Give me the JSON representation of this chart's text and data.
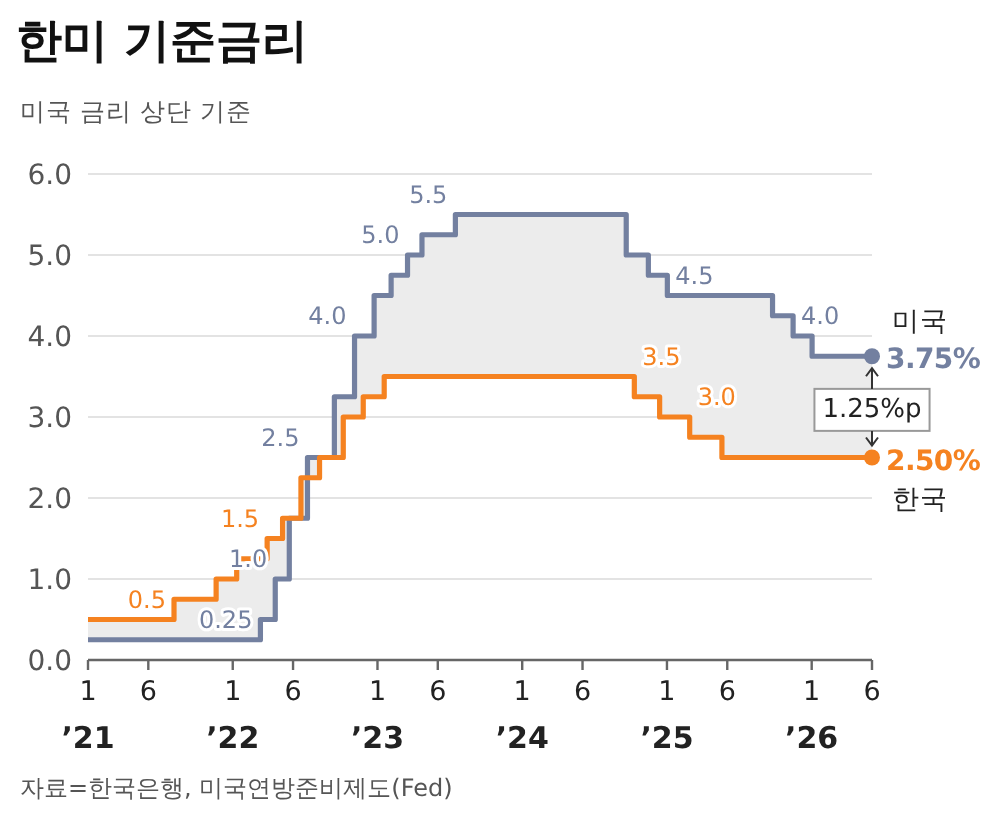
{
  "chart_data": {
    "type": "step",
    "title": "한미 기준금리",
    "subtitle": "미국 금리 상단 기준",
    "xlim": [
      "2021-01",
      "2026-06"
    ],
    "ylim": [
      0,
      6
    ],
    "xticks": [
      {
        "value": "2021-01",
        "label": "1\n’21"
      },
      {
        "value": "2021-06",
        "label": "6"
      },
      {
        "value": "2022-01",
        "label": "1\n’22"
      },
      {
        "value": "2022-06",
        "label": "6"
      },
      {
        "value": "2023-01",
        "label": "1\n’23"
      },
      {
        "value": "2023-06",
        "label": "6"
      },
      {
        "value": "2024-01",
        "label": "1\n’24"
      },
      {
        "value": "2024-06",
        "label": "6"
      },
      {
        "value": "2025-01",
        "label": "1\n’25"
      },
      {
        "value": "2025-06",
        "label": "6"
      },
      {
        "value": "2026-01",
        "label": "1\n’26"
      },
      {
        "value": "2026-06",
        "label": "6"
      }
    ],
    "yticks": [
      {
        "value": 0,
        "label": "0.0"
      },
      {
        "value": 1,
        "label": "1.0"
      },
      {
        "value": 2,
        "label": "2.0"
      },
      {
        "value": 3,
        "label": "3.0"
      },
      {
        "value": 4,
        "label": "4.0"
      },
      {
        "value": 5,
        "label": "5.0"
      },
      {
        "value": 6,
        "label": "6.0"
      }
    ],
    "grid": "y",
    "series": [
      {
        "name": "미국",
        "color": "#7380a0",
        "x": [
          "2021-01-01",
          "2022-03-10",
          "2022-04-17",
          "2022-05-22",
          "2022-07-07",
          "2022-09-14",
          "2022-11-04",
          "2022-12-23",
          "2023-02-05",
          "2023-03-16",
          "2023-04-22",
          "2023-07-15",
          "2024-09-20",
          "2024-11-15",
          "2025-01-02",
          "2025-09-24",
          "2025-11-15",
          "2026-01-02",
          "2026-06-01"
        ],
        "values": [
          0.25,
          0.5,
          1.0,
          1.75,
          2.5,
          3.25,
          4.0,
          4.5,
          4.75,
          5.0,
          5.25,
          5.5,
          5.0,
          4.75,
          4.5,
          4.25,
          4.0,
          3.75,
          3.75
        ]
      },
      {
        "name": "한국",
        "color": "#f58220",
        "x": [
          "2021-01-01",
          "2021-08-05",
          "2021-11-20",
          "2022-01-11",
          "2022-03-27",
          "2022-05-05",
          "2022-06-21",
          "2022-08-07",
          "2022-10-06",
          "2022-11-26",
          "2023-01-18",
          "2024-10-10",
          "2024-12-13",
          "2025-02-28",
          "2025-05-18",
          "2026-06-01"
        ],
        "values": [
          0.5,
          0.75,
          1.0,
          1.25,
          1.5,
          1.75,
          2.25,
          2.5,
          3.0,
          3.25,
          3.5,
          3.25,
          3.0,
          2.75,
          2.5,
          2.5
        ]
      }
    ],
    "annotations": [
      {
        "text": "0.5",
        "x": "2021-08-05",
        "y": 0.5
      },
      {
        "text": "0.25",
        "x": "2022-03-10",
        "y": 0.25
      },
      {
        "text": "1.0",
        "x": "2022-04-17",
        "y": 1.0
      },
      {
        "text": "1.5",
        "x": "2022-03-27",
        "y": 1.5
      },
      {
        "text": "2.5",
        "x": "2022-07-07",
        "y": 2.5
      },
      {
        "text": "4.0",
        "x": "2022-11-04",
        "y": 4.0
      },
      {
        "text": "5.0",
        "x": "2023-03-16",
        "y": 5.0
      },
      {
        "text": "5.5",
        "x": "2023-07-15",
        "y": 5.5
      },
      {
        "text": "4.5",
        "x": "2025-01-02",
        "y": 4.5
      },
      {
        "text": "4.0",
        "x": "2025-11-15",
        "y": 4.0
      },
      {
        "text": "3.5",
        "x": "2024-10-10",
        "y": 3.5
      },
      {
        "text": "3.0",
        "x": "2025-02-28",
        "y": 3.0
      },
      {
        "text": "3.75%",
        "x": "2026-06-01",
        "y": 3.75
      },
      {
        "text": "2.50%",
        "x": "2026-06-01",
        "y": 2.5
      },
      "1.25%p",
      "자료=한국은행, 미국연방준비제도(Fed)"
    ]
  }
}
